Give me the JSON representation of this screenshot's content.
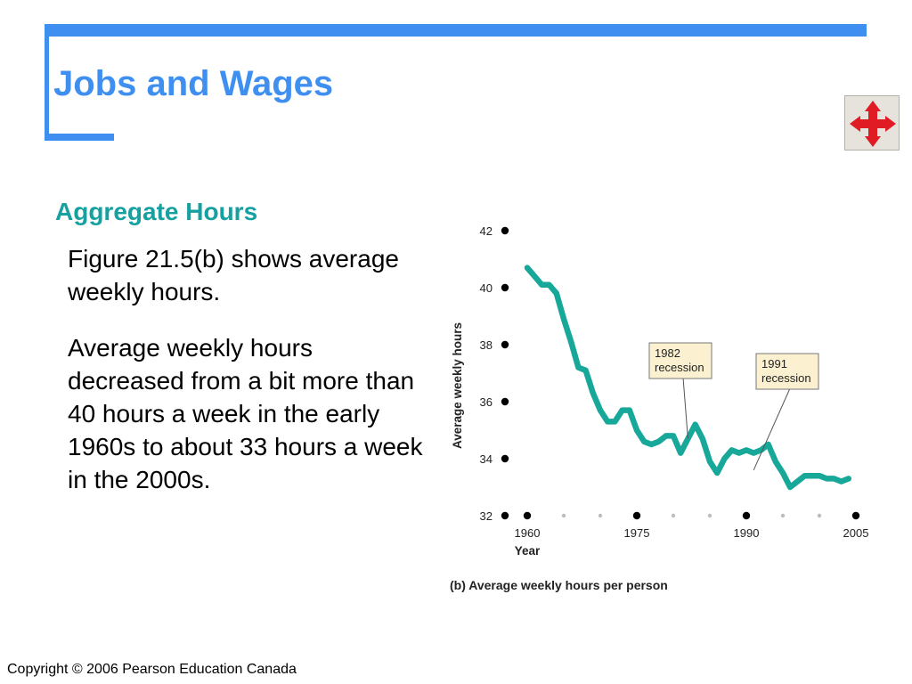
{
  "slide": {
    "title": "Jobs and Wages",
    "subtitle": "Aggregate Hours",
    "paragraphs": [
      "Figure 21.5(b) shows average weekly hours.",
      "Average weekly hours decreased from a bit more than 40 hours a week in the early 1960s to about 33 hours a week in the 2000s."
    ],
    "copyright": "Copyright © 2006 Pearson Education Canada",
    "nav_icon": "four-way-arrows-icon",
    "colors": {
      "accent": "#3f8ff0",
      "subtitle": "#16a0a0",
      "line": "#17a89a",
      "nav_arrows": "#e01b24"
    }
  },
  "chart_data": {
    "type": "line",
    "caption": "(b) Average weekly hours per person",
    "xlabel": "Year",
    "ylabel": "Average weekly hours",
    "xlim": [
      1960,
      2005
    ],
    "ylim": [
      32,
      42
    ],
    "x_ticks": [
      1960,
      1975,
      1990,
      2005
    ],
    "y_ticks": [
      32,
      34,
      36,
      38,
      40,
      42
    ],
    "grid": false,
    "series": [
      {
        "x": [
          1960,
          1961,
          1962,
          1963,
          1964,
          1965,
          1966,
          1967,
          1968,
          1969,
          1970,
          1971,
          1972,
          1973,
          1974,
          1975,
          1976,
          1977,
          1978,
          1979,
          1980,
          1981,
          1982,
          1983,
          1984,
          1985,
          1986,
          1987,
          1988,
          1989,
          1990,
          1991,
          1992,
          1993,
          1994,
          1995,
          1996,
          1997,
          1998,
          1999,
          2000,
          2001,
          2002,
          2003,
          2004
        ],
        "y": [
          40.7,
          40.4,
          40.1,
          40.1,
          39.8,
          38.9,
          38.1,
          37.2,
          37.1,
          36.3,
          35.7,
          35.3,
          35.3,
          35.7,
          35.7,
          35.0,
          34.6,
          34.5,
          34.6,
          34.8,
          34.8,
          34.2,
          34.7,
          35.2,
          34.7,
          33.9,
          33.5,
          34.0,
          34.3,
          34.2,
          34.3,
          34.2,
          34.3,
          34.5,
          33.9,
          33.5,
          33.0,
          33.2,
          33.4,
          33.4,
          33.4,
          33.3,
          33.3,
          33.2,
          33.3
        ]
      }
    ],
    "annotations": [
      {
        "text": [
          "1982",
          "recession"
        ],
        "x": 1982
      },
      {
        "text": [
          "1991",
          "recession"
        ],
        "x": 1991
      }
    ]
  }
}
